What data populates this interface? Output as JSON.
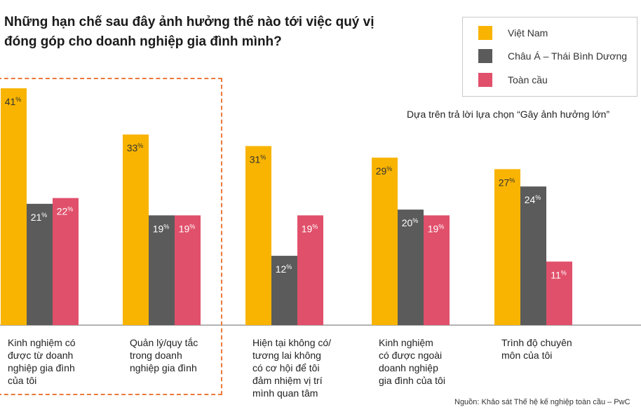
{
  "title_line1": "Những hạn chế sau đây ảnh hưởng thế nào tới việc quý vị",
  "title_line2": "đóng góp cho doanh nghiệp gia đình mình?",
  "note": "Dựa trên trả lời lựa chọn “Gây ảnh hưởng lớn”",
  "source": "Nguồn: Khảo sát Thế hệ kế nghiệp toàn cầu – PwC",
  "colors": {
    "vietnam": "#f8b400",
    "asia": "#5b5b5b",
    "global": "#e1506b",
    "highlight": "#ec7a3a"
  },
  "chart_data": {
    "type": "bar",
    "title": "Những hạn chế sau đây ảnh hưởng thế nào tới việc quý vị đóng góp cho doanh nghiệp gia đình mình?",
    "ylim": [
      0,
      45
    ],
    "unit": "%",
    "legend_position": "top-right",
    "categories": [
      [
        "Kinh nghiệm có",
        "được từ doanh",
        "nghiệp gia đình",
        "của tôi"
      ],
      [
        "Quản lý/quy tắc",
        "trong doanh",
        "nghiệp gia đình"
      ],
      [
        "Hiện tại không có/",
        "tương lai không",
        "có cơ hội để tôi",
        "đảm nhiệm vị trí",
        "mình quan tâm"
      ],
      [
        "Kinh nghiệm",
        "có được ngoài",
        "doanh nghiệp",
        "gia đình của tôi"
      ],
      [
        "Trình độ chuyên",
        "môn của tôi"
      ]
    ],
    "series": [
      {
        "name": "Việt Nam",
        "values": [
          41,
          33,
          31,
          29,
          27
        ]
      },
      {
        "name": "Châu Á – Thái Bình Dương",
        "values": [
          21,
          19,
          12,
          20,
          24
        ]
      },
      {
        "name": "Toàn cầu",
        "values": [
          22,
          19,
          19,
          19,
          11
        ]
      }
    ]
  }
}
